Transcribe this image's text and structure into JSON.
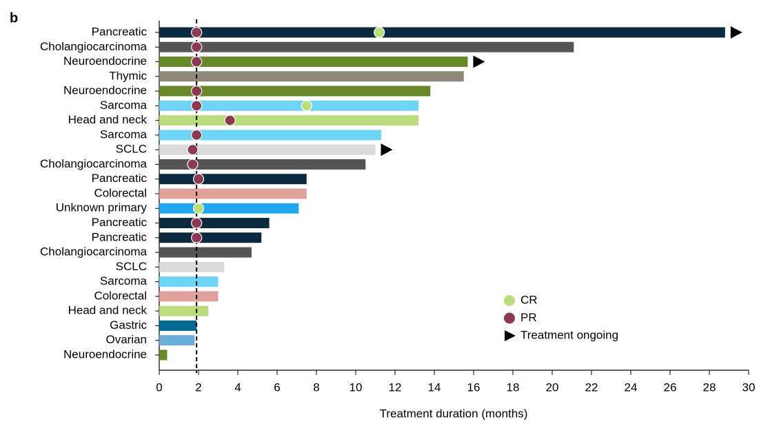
{
  "chart_data": {
    "type": "swimmer",
    "panel_label": "b",
    "xlabel": "Treatment duration (months)",
    "categories": [
      "Pancreatic",
      "Cholangiocarcinoma",
      "Neuroendocrine",
      "Thymic",
      "Neuroendocrine",
      "Sarcoma",
      "Head and neck",
      "Sarcoma",
      "SCLC",
      "Cholangiocarcinoma",
      "Pancreatic",
      "Colorectal",
      "Unknown primary",
      "Pancreatic",
      "Pancreatic",
      "Cholangiocarcinoma",
      "SCLC",
      "Sarcoma",
      "Colorectal",
      "Head and neck",
      "Gastric",
      "Ovarian",
      "Neuroendocrine"
    ],
    "values": [
      28.8,
      21.1,
      15.7,
      15.5,
      13.8,
      13.2,
      13.2,
      11.3,
      11.0,
      10.5,
      7.5,
      7.5,
      7.1,
      5.6,
      5.2,
      4.7,
      3.3,
      3.0,
      3.0,
      2.5,
      1.9,
      1.8,
      0.4
    ],
    "colors": [
      "#0b2a40",
      "#555555",
      "#678728",
      "#8f877c",
      "#678728",
      "#6dd4f6",
      "#bbdb7c",
      "#6dd4f6",
      "#dadada",
      "#555555",
      "#0b2a40",
      "#e1a19b",
      "#22a6ef",
      "#0b2a40",
      "#0b2a40",
      "#555555",
      "#dadada",
      "#6dd4f6",
      "#e1a19b",
      "#bbdb7c",
      "#006a95",
      "#6aaed8",
      "#678728"
    ],
    "series": [
      {
        "name": "CR",
        "color": "#b9de7b",
        "values": [
          11.2,
          null,
          null,
          null,
          null,
          7.5,
          null,
          null,
          null,
          null,
          null,
          null,
          2.0,
          null,
          null,
          null,
          null,
          null,
          null,
          null,
          null,
          null,
          null
        ]
      },
      {
        "name": "PR",
        "color": "#8c3a52",
        "values": [
          1.9,
          1.9,
          1.9,
          null,
          1.9,
          1.9,
          3.6,
          1.9,
          1.7,
          1.7,
          2.0,
          null,
          null,
          1.9,
          1.9,
          null,
          null,
          null,
          null,
          null,
          null,
          null,
          null
        ]
      },
      {
        "name": "Treatment ongoing",
        "color": "#000000",
        "values": [
          true,
          false,
          true,
          false,
          false,
          false,
          false,
          false,
          true,
          false,
          false,
          false,
          false,
          false,
          false,
          false,
          false,
          false,
          false,
          false,
          false,
          false,
          false
        ]
      }
    ],
    "reference_line": 1.9,
    "xlim": [
      0,
      30
    ],
    "xticks": [
      0,
      2,
      4,
      6,
      8,
      10,
      12,
      14,
      16,
      18,
      20,
      22,
      24,
      26,
      28,
      30
    ]
  }
}
